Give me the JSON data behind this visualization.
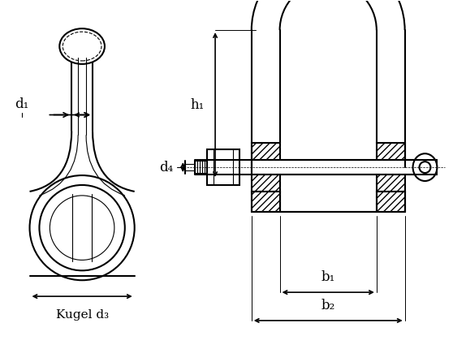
{
  "bg_color": "#ffffff",
  "line_color": "#000000",
  "hatch_color": "#000000",
  "fig_width": 5.58,
  "fig_height": 4.46,
  "dpi": 100,
  "labels": {
    "d1": "d₁",
    "d4": "d₄",
    "h1": "h₁",
    "b1": "b₁",
    "b2": "b₂",
    "kugel": "Kugel d₃"
  }
}
